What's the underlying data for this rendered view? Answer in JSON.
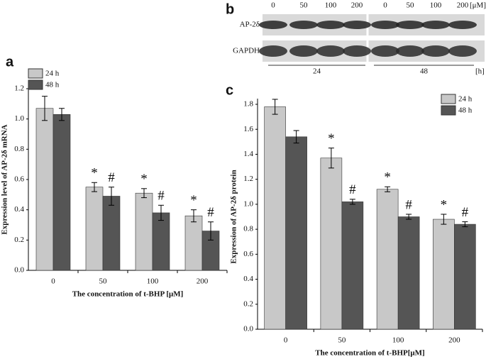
{
  "chart_data": [
    {
      "type": "bar",
      "panel_label": "a",
      "y_label": "Expression level of AP-2δ  mRNA",
      "x_label": "The concentration of t-BHP [μM]",
      "categories": [
        "0",
        "50",
        "100",
        "200"
      ],
      "series": [
        {
          "name": "24 h",
          "color": "#c8c8c8",
          "values": [
            1.07,
            0.55,
            0.51,
            0.36
          ],
          "errors": [
            0.08,
            0.03,
            0.03,
            0.04
          ],
          "markers": [
            null,
            "*",
            "*",
            "*"
          ]
        },
        {
          "name": "48 h",
          "color": "#555555",
          "values": [
            1.03,
            0.49,
            0.38,
            0.26
          ],
          "errors": [
            0.04,
            0.06,
            0.05,
            0.06
          ],
          "markers": [
            null,
            "#",
            "#",
            "#"
          ]
        }
      ],
      "ylim": [
        0,
        1.2
      ],
      "yticks": [
        {
          "value": 0,
          "label": "0.0"
        },
        0.2,
        0.4,
        0.6,
        0.8,
        {
          "value": 1,
          "label": "1.0"
        },
        1.2
      ],
      "legend": "top-left"
    },
    {
      "type": "bar",
      "panel_label": "c",
      "y_label": "Expression of AP-2δ  protein",
      "x_label": "The concentration of t-BHP[μM]",
      "categories": [
        "0",
        "50",
        "100",
        "200"
      ],
      "series": [
        {
          "name": "24 h",
          "color": "#c8c8c8",
          "values": [
            1.78,
            1.37,
            1.12,
            0.88
          ],
          "errors": [
            0.06,
            0.08,
            0.02,
            0.04
          ],
          "markers": [
            null,
            "*",
            "*",
            "*"
          ]
        },
        {
          "name": "48 h",
          "color": "#555555",
          "values": [
            1.54,
            1.02,
            0.9,
            0.84
          ],
          "errors": [
            0.05,
            0.02,
            0.02,
            0.02
          ],
          "markers": [
            null,
            "#",
            "#",
            "#"
          ]
        }
      ],
      "ylim": [
        0,
        1.8
      ],
      "yticks": [
        {
          "value": 0,
          "label": "0.0"
        },
        0.2,
        0.4,
        0.6,
        0.8,
        {
          "value": 1,
          "label": "1.0"
        },
        1.2,
        1.4,
        1.6,
        1.8
      ],
      "legend": "top-right"
    }
  ],
  "blot": {
    "panel_label": "b",
    "lanes": [
      "0",
      "50",
      "100",
      "200",
      "0",
      "50",
      "100",
      "200"
    ],
    "lane_unit": "[μM]",
    "rows": [
      "AP-2δ",
      "GAPDH"
    ],
    "groups": [
      "24",
      "48"
    ],
    "group_unit": "[h]"
  }
}
